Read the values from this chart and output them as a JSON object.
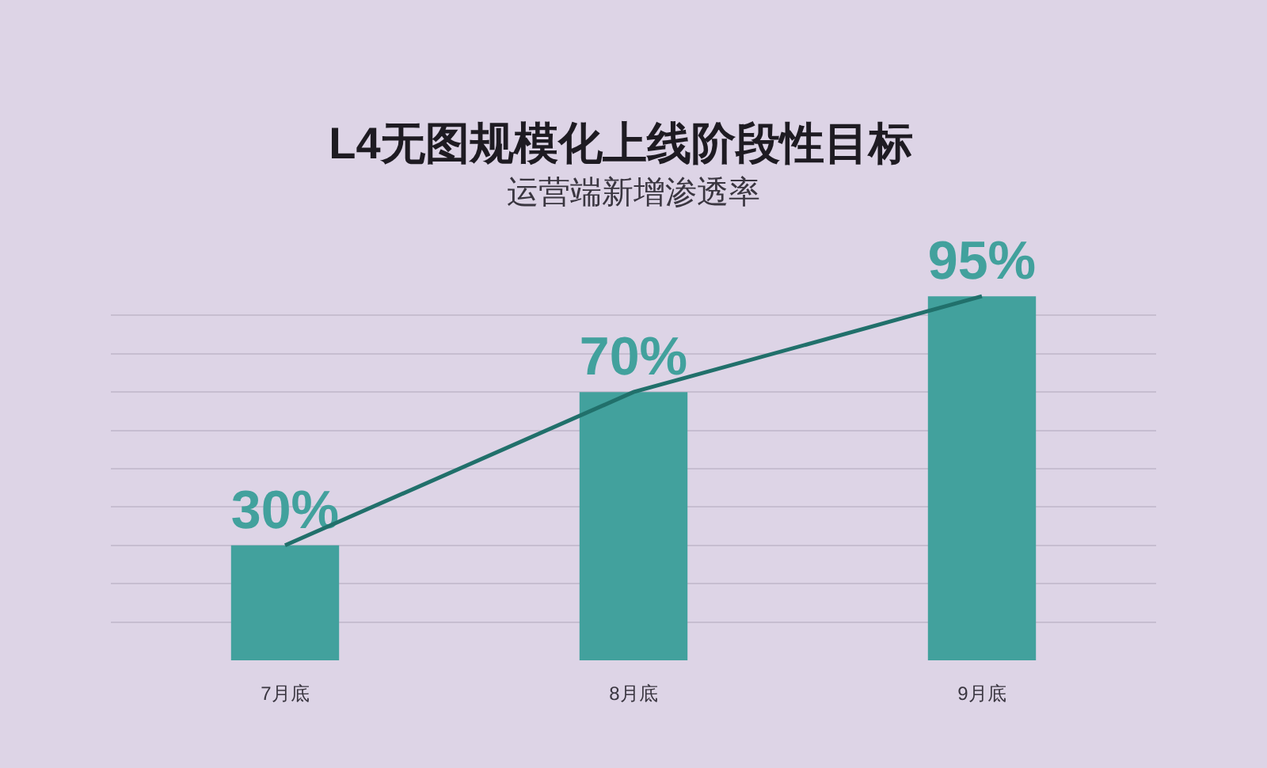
{
  "chart_data": {
    "type": "bar",
    "title": "L4无图规模化上线阶段性目标",
    "subtitle": "运营端新增渗透率",
    "categories": [
      "7月底",
      "8月底",
      "9月底"
    ],
    "series": [
      {
        "color": "#42a19d",
        "values": [
          30,
          70,
          95
        ],
        "value_labels": [
          "30%",
          "70%",
          "95%"
        ]
      },
      {
        "type": "line",
        "color": "#21706b",
        "values": [
          30,
          70,
          95
        ],
        "line_style": "solid"
      }
    ],
    "grid": "y",
    "tick_labels": "x"
  }
}
